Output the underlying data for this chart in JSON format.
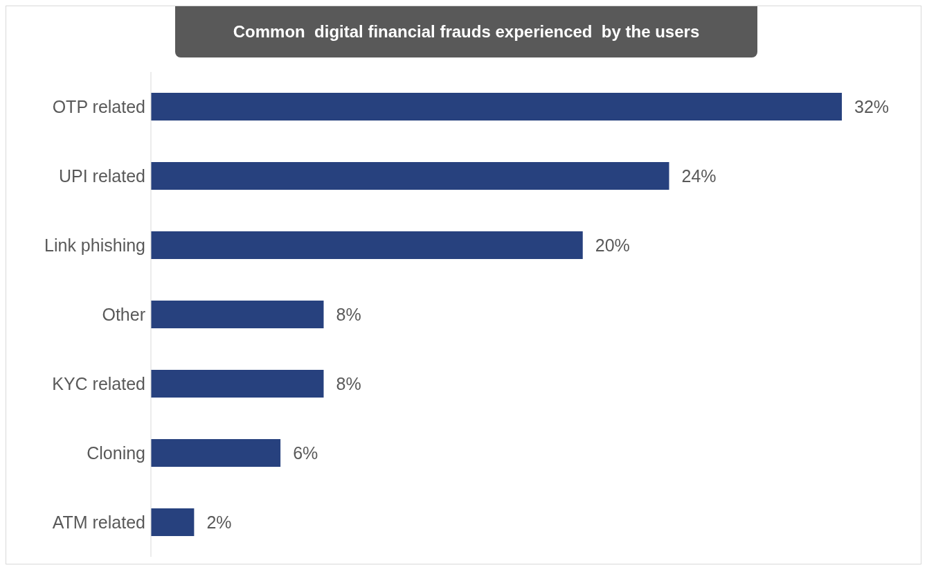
{
  "chart_data": {
    "type": "bar",
    "orientation": "horizontal",
    "title": "Common  digital financial frauds experienced  by the users",
    "categories": [
      "OTP related",
      "UPI related",
      "Link phishing",
      "Other",
      "KYC related",
      "Cloning",
      "ATM related"
    ],
    "values": [
      32,
      24,
      20,
      8,
      8,
      6,
      2
    ],
    "value_labels": [
      "32%",
      "24%",
      "20%",
      "8%",
      "8%",
      "6%",
      "2%"
    ],
    "color": "#27417e",
    "grid": false,
    "legend": false
  }
}
